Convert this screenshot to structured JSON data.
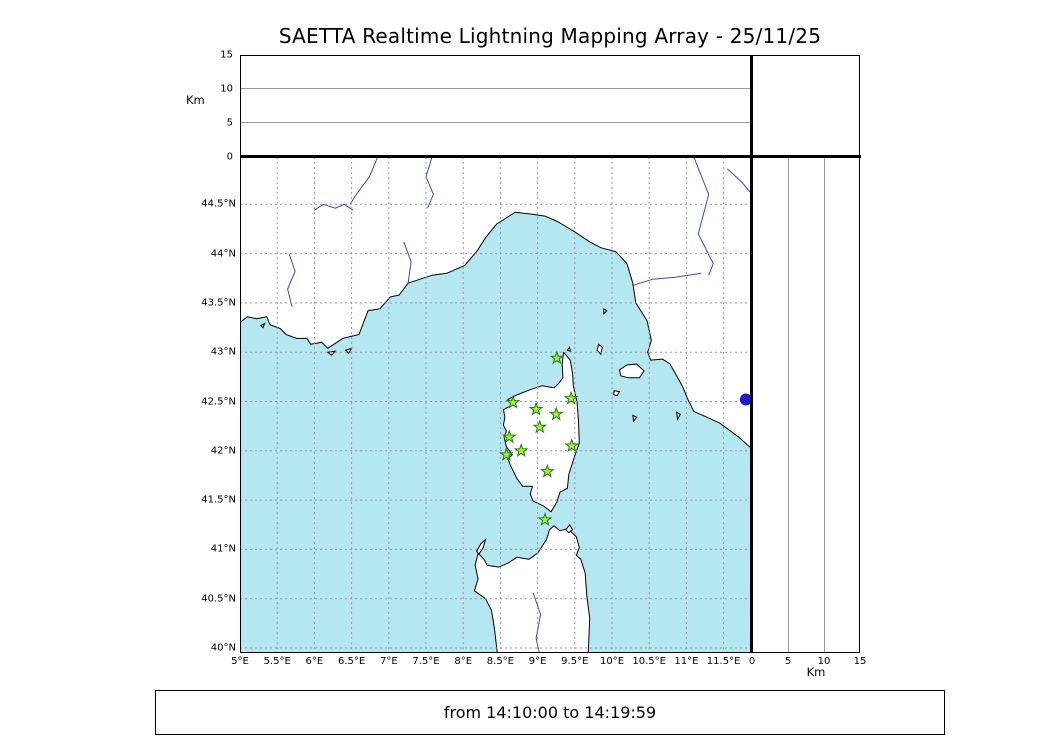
{
  "title": "SAETTA Realtime Lightning Mapping Array - 25/11/25",
  "status": {
    "text": "from 14:10:00 to 14:19:59"
  },
  "colors": {
    "sea": "#b4e7f0",
    "land": "#ffffff",
    "coast": "#000000",
    "grid": "#999999",
    "river": "#4444cc",
    "station_fill": "#a8f028",
    "station_stroke": "#1f7a1f",
    "event_dot": "#1c1ccd"
  },
  "altitude_panel": {
    "label": "Km",
    "ticks": [
      0,
      5,
      10,
      15
    ],
    "gridlines": [
      5,
      10
    ],
    "range": [
      0,
      15
    ]
  },
  "right_panel": {
    "label": "Km",
    "ticks": [
      0,
      5,
      10,
      15
    ],
    "gridlines": [
      5,
      10
    ],
    "range": [
      0,
      15
    ]
  },
  "map": {
    "lon_ticks": [
      {
        "v": 5,
        "label": "5°E"
      },
      {
        "v": 5.5,
        "label": "5.5°E"
      },
      {
        "v": 6,
        "label": "6°E"
      },
      {
        "v": 6.5,
        "label": "6.5°E"
      },
      {
        "v": 7,
        "label": "7°E"
      },
      {
        "v": 7.5,
        "label": "7.5°E"
      },
      {
        "v": 8,
        "label": "8°E"
      },
      {
        "v": 8.5,
        "label": "8.5°E"
      },
      {
        "v": 9,
        "label": "9°E"
      },
      {
        "v": 9.5,
        "label": "9.5°E"
      },
      {
        "v": 10,
        "label": "10°E"
      },
      {
        "v": 10.5,
        "label": "10.5°E"
      },
      {
        "v": 11,
        "label": "11°E"
      },
      {
        "v": 11.5,
        "label": "11.5°E"
      }
    ],
    "lat_ticks": [
      {
        "v": 40,
        "label": "40°N"
      },
      {
        "v": 40.5,
        "label": "40.5°N"
      },
      {
        "v": 41,
        "label": "41°N"
      },
      {
        "v": 41.5,
        "label": "41.5°N"
      },
      {
        "v": 42,
        "label": "42°N"
      },
      {
        "v": 42.5,
        "label": "42.5°N"
      },
      {
        "v": 43,
        "label": "43°N"
      },
      {
        "v": 43.5,
        "label": "43.5°N"
      },
      {
        "v": 44,
        "label": "44°N"
      },
      {
        "v": 44.5,
        "label": "44.5°N"
      }
    ],
    "stations": [
      {
        "lon": 9.26,
        "lat": 42.94
      },
      {
        "lon": 8.67,
        "lat": 42.49
      },
      {
        "lon": 8.98,
        "lat": 42.42
      },
      {
        "lon": 9.45,
        "lat": 42.53
      },
      {
        "lon": 9.25,
        "lat": 42.37
      },
      {
        "lon": 9.03,
        "lat": 42.24
      },
      {
        "lon": 8.62,
        "lat": 42.14
      },
      {
        "lon": 9.46,
        "lat": 42.05
      },
      {
        "lon": 8.58,
        "lat": 41.96
      },
      {
        "lon": 8.78,
        "lat": 42.0
      },
      {
        "lon": 9.13,
        "lat": 41.79
      },
      {
        "lon": 9.1,
        "lat": 41.3
      }
    ],
    "event_dot": {
      "lon": 11.8,
      "lat": 42.52
    },
    "landmasses": {
      "mainland": [
        [
          5.0,
          44.98
        ],
        [
          11.88,
          44.98
        ],
        [
          11.88,
          42.02
        ],
        [
          11.7,
          42.14
        ],
        [
          11.45,
          42.28
        ],
        [
          11.22,
          42.36
        ],
        [
          11.1,
          42.4
        ],
        [
          11.02,
          42.52
        ],
        [
          10.95,
          42.65
        ],
        [
          10.78,
          42.88
        ],
        [
          10.68,
          42.93
        ],
        [
          10.52,
          42.92
        ],
        [
          10.48,
          43.0
        ],
        [
          10.53,
          43.12
        ],
        [
          10.47,
          43.32
        ],
        [
          10.32,
          43.5
        ],
        [
          10.28,
          43.7
        ],
        [
          10.2,
          43.9
        ],
        [
          10.05,
          44.02
        ],
        [
          9.85,
          44.06
        ],
        [
          9.7,
          44.12
        ],
        [
          9.5,
          44.22
        ],
        [
          9.28,
          44.32
        ],
        [
          9.1,
          44.38
        ],
        [
          8.93,
          44.4
        ],
        [
          8.7,
          44.42
        ],
        [
          8.45,
          44.3
        ],
        [
          8.3,
          44.16
        ],
        [
          8.18,
          44.02
        ],
        [
          8.02,
          43.88
        ],
        [
          7.78,
          43.8
        ],
        [
          7.58,
          43.78
        ],
        [
          7.42,
          43.74
        ],
        [
          7.26,
          43.7
        ],
        [
          7.14,
          43.58
        ],
        [
          7.02,
          43.56
        ],
        [
          6.88,
          43.44
        ],
        [
          6.72,
          43.42
        ],
        [
          6.66,
          43.3
        ],
        [
          6.6,
          43.18
        ],
        [
          6.38,
          43.14
        ],
        [
          6.18,
          43.04
        ],
        [
          6.1,
          43.1
        ],
        [
          5.95,
          43.08
        ],
        [
          5.9,
          43.14
        ],
        [
          5.76,
          43.14
        ],
        [
          5.62,
          43.18
        ],
        [
          5.54,
          43.24
        ],
        [
          5.4,
          43.28
        ],
        [
          5.36,
          43.36
        ],
        [
          5.22,
          43.34
        ],
        [
          5.1,
          43.36
        ],
        [
          5.0,
          43.3
        ]
      ],
      "corsica": [
        [
          9.35,
          43.0
        ],
        [
          9.44,
          42.92
        ],
        [
          9.47,
          42.78
        ],
        [
          9.48,
          42.66
        ],
        [
          9.53,
          42.5
        ],
        [
          9.55,
          42.3
        ],
        [
          9.56,
          42.08
        ],
        [
          9.5,
          41.95
        ],
        [
          9.42,
          41.76
        ],
        [
          9.4,
          41.62
        ],
        [
          9.3,
          41.58
        ],
        [
          9.26,
          41.48
        ],
        [
          9.18,
          41.38
        ],
        [
          9.08,
          41.44
        ],
        [
          8.94,
          41.49
        ],
        [
          8.9,
          41.56
        ],
        [
          8.93,
          41.64
        ],
        [
          8.8,
          41.64
        ],
        [
          8.72,
          41.72
        ],
        [
          8.63,
          41.86
        ],
        [
          8.6,
          41.92
        ],
        [
          8.66,
          41.96
        ],
        [
          8.58,
          42.04
        ],
        [
          8.55,
          42.14
        ],
        [
          8.58,
          42.2
        ],
        [
          8.54,
          42.26
        ],
        [
          8.56,
          42.34
        ],
        [
          8.54,
          42.42
        ],
        [
          8.66,
          42.46
        ],
        [
          8.6,
          42.52
        ],
        [
          8.73,
          42.57
        ],
        [
          8.9,
          42.62
        ],
        [
          9.06,
          42.66
        ],
        [
          9.22,
          42.64
        ],
        [
          9.28,
          42.68
        ],
        [
          9.34,
          42.74
        ],
        [
          9.33,
          42.88
        ]
      ],
      "sardinia": [
        [
          8.46,
          39.94
        ],
        [
          8.42,
          40.2
        ],
        [
          8.38,
          40.38
        ],
        [
          8.3,
          40.5
        ],
        [
          8.15,
          40.58
        ],
        [
          8.2,
          40.7
        ],
        [
          8.16,
          40.84
        ],
        [
          8.2,
          40.96
        ],
        [
          8.28,
          40.9
        ],
        [
          8.32,
          40.84
        ],
        [
          8.48,
          40.82
        ],
        [
          8.6,
          40.86
        ],
        [
          8.72,
          40.92
        ],
        [
          8.88,
          40.9
        ],
        [
          9.0,
          40.96
        ],
        [
          9.12,
          41.1
        ],
        [
          9.16,
          41.2
        ],
        [
          9.22,
          41.24
        ],
        [
          9.3,
          41.19
        ],
        [
          9.4,
          41.21
        ],
        [
          9.52,
          41.13
        ],
        [
          9.56,
          41.02
        ],
        [
          9.52,
          40.94
        ],
        [
          9.58,
          40.9
        ],
        [
          9.64,
          40.76
        ],
        [
          9.66,
          40.54
        ],
        [
          9.7,
          40.3
        ],
        [
          9.68,
          39.94
        ]
      ]
    },
    "islands": [
      [
        [
          10.1,
          42.82
        ],
        [
          10.2,
          42.87
        ],
        [
          10.33,
          42.88
        ],
        [
          10.43,
          42.81
        ],
        [
          10.37,
          42.74
        ],
        [
          10.22,
          42.74
        ],
        [
          10.12,
          42.76
        ]
      ],
      [
        [
          9.82,
          43.08
        ],
        [
          9.87,
          43.05
        ],
        [
          9.85,
          42.98
        ],
        [
          9.8,
          43.02
        ]
      ],
      [
        [
          9.89,
          43.44
        ],
        [
          9.93,
          43.42
        ],
        [
          9.89,
          43.39
        ]
      ],
      [
        [
          10.03,
          42.61
        ],
        [
          10.1,
          42.6
        ],
        [
          10.07,
          42.56
        ],
        [
          10.02,
          42.57
        ]
      ],
      [
        [
          10.28,
          42.36
        ],
        [
          10.33,
          42.34
        ],
        [
          10.29,
          42.3
        ]
      ],
      [
        [
          10.87,
          42.39
        ],
        [
          10.92,
          42.37
        ],
        [
          10.88,
          42.32
        ]
      ],
      [
        [
          8.18,
          40.98
        ],
        [
          8.24,
          41.06
        ],
        [
          8.3,
          41.1
        ],
        [
          8.27,
          41.02
        ],
        [
          8.21,
          40.95
        ]
      ],
      [
        [
          9.38,
          41.2
        ],
        [
          9.43,
          41.25
        ],
        [
          9.47,
          41.2
        ],
        [
          9.42,
          41.17
        ]
      ],
      [
        [
          6.18,
          43.0
        ],
        [
          6.28,
          43.01
        ],
        [
          6.23,
          42.97
        ]
      ],
      [
        [
          6.42,
          43.02
        ],
        [
          6.5,
          43.04
        ],
        [
          6.46,
          42.99
        ]
      ],
      [
        [
          9.4,
          43.02
        ],
        [
          9.43,
          43.05
        ],
        [
          9.44,
          43.01
        ]
      ],
      [
        [
          5.28,
          43.27
        ],
        [
          5.33,
          43.29
        ],
        [
          5.31,
          43.25
        ]
      ]
    ],
    "rivers": [
      [
        [
          6.0,
          44.44
        ],
        [
          6.12,
          44.5
        ],
        [
          6.28,
          44.46
        ],
        [
          6.4,
          44.5
        ],
        [
          6.52,
          44.44
        ]
      ],
      [
        [
          5.66,
          44.0
        ],
        [
          5.74,
          43.82
        ],
        [
          5.64,
          43.64
        ],
        [
          5.7,
          43.46
        ]
      ],
      [
        [
          6.85,
          44.98
        ],
        [
          6.74,
          44.78
        ],
        [
          6.58,
          44.62
        ],
        [
          6.48,
          44.5
        ]
      ],
      [
        [
          7.58,
          44.98
        ],
        [
          7.5,
          44.78
        ],
        [
          7.6,
          44.6
        ],
        [
          7.52,
          44.46
        ]
      ],
      [
        [
          7.2,
          44.12
        ],
        [
          7.3,
          43.92
        ],
        [
          7.26,
          43.7
        ]
      ],
      [
        [
          11.2,
          43.8
        ],
        [
          10.85,
          43.76
        ],
        [
          10.55,
          43.74
        ],
        [
          10.29,
          43.68
        ]
      ],
      [
        [
          11.1,
          44.98
        ],
        [
          11.3,
          44.6
        ],
        [
          11.16,
          44.2
        ],
        [
          11.36,
          43.9
        ],
        [
          11.3,
          43.78
        ]
      ],
      [
        [
          11.55,
          44.86
        ],
        [
          11.75,
          44.72
        ],
        [
          11.86,
          44.62
        ]
      ],
      [
        [
          8.94,
          40.56
        ],
        [
          9.04,
          40.34
        ],
        [
          8.98,
          40.1
        ],
        [
          9.02,
          39.96
        ]
      ]
    ]
  }
}
